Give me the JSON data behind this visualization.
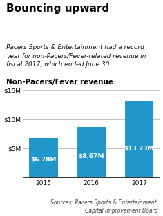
{
  "title": "Bouncing upward",
  "subtitle": "Pacers Sports & Entertainment had a record\nyear for non-Pacers/Fever-related revenue in\nfiscal 2017, which ended June 30.",
  "chart_label": "Non-Pacers/Fever revenue",
  "categories": [
    "2015",
    "2016",
    "2017"
  ],
  "values": [
    6.78,
    8.67,
    13.23
  ],
  "bar_labels": [
    "$6.78M",
    "$8.67M",
    "$13.23M"
  ],
  "bar_color": "#2196c8",
  "ylim": [
    0,
    15
  ],
  "yticks": [
    5,
    10,
    15
  ],
  "ytick_labels": [
    "$5M",
    "$10M",
    "$15M"
  ],
  "source": "Sources: Pacers Sports & Entertainment,\nCapital Improvement Board",
  "bg_color": "#ffffff",
  "title_fontsize": 11,
  "subtitle_fontsize": 6.5,
  "chart_label_fontsize": 7.5,
  "bar_label_fontsize": 6.5,
  "axis_label_fontsize": 6.5,
  "source_fontsize": 5.5
}
